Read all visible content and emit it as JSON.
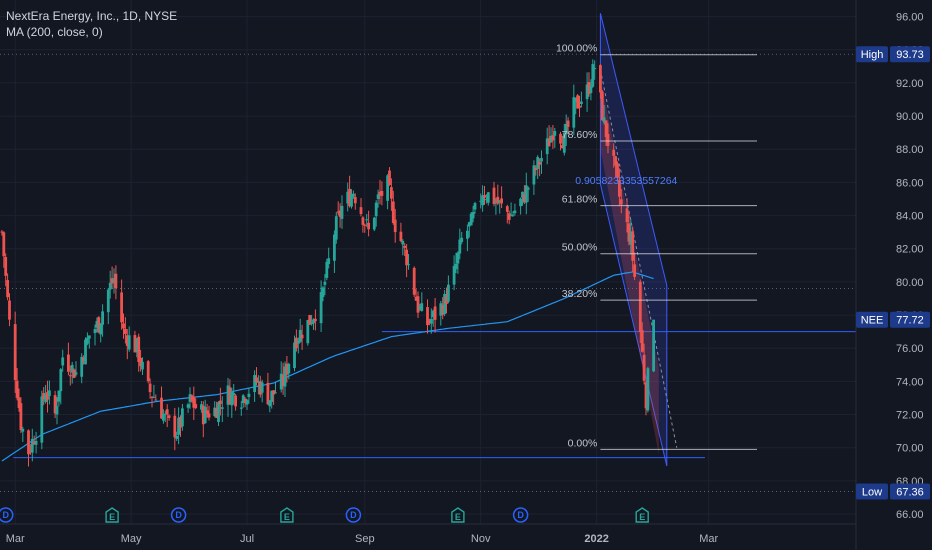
{
  "header": {
    "title": "NextEra Energy, Inc., 1D, NYSE",
    "indicator": "MA (200, close, 0)"
  },
  "colors": {
    "background": "#131722",
    "up": "#26a69a",
    "down": "#ef5350",
    "ma": "#2196f3",
    "axis_text": "#b2b5be",
    "tag": "#1e3a8a",
    "fib_line": "#d1d4dc",
    "fib_text": "#c0c6d0",
    "channel": "#3d5afe"
  },
  "chart_data": {
    "type": "candlestick",
    "symbol": "NEE",
    "interval": "1D",
    "ylim": [
      65.4,
      97.0
    ],
    "y_ticks": [
      "96.00",
      "94.00",
      "92.00",
      "90.00",
      "88.00",
      "86.00",
      "84.00",
      "82.00",
      "80.00",
      "78.00",
      "76.00",
      "74.00",
      "72.00",
      "70.00",
      "68.00",
      "66.00"
    ],
    "x_ticks": [
      "Mar",
      "May",
      "Jul",
      "Sep",
      "Nov",
      "2022",
      "Mar"
    ],
    "x_start_date": "2021-02-21",
    "x_tick_dates": [
      "2021-03-01",
      "2021-05-01",
      "2021-07-01",
      "2021-09-01",
      "2021-11-01",
      "2022-01-01",
      "2022-03-01"
    ],
    "last_date": "2022-01-31",
    "price_tags": [
      {
        "label": "High",
        "value": "93.73",
        "price": 93.73
      },
      {
        "label": "NEE",
        "value": "77.72",
        "price": 77.72
      },
      {
        "label": "Low",
        "value": "67.36",
        "price": 67.36
      }
    ],
    "close_anchors": [
      [
        "2021-02-22",
        83.0
      ],
      [
        "2021-02-26",
        77.5
      ],
      [
        "2021-03-04",
        71.5
      ],
      [
        "2021-03-08",
        69.8
      ],
      [
        "2021-03-12",
        71.0
      ],
      [
        "2021-03-17",
        73.5
      ],
      [
        "2021-03-22",
        72.0
      ],
      [
        "2021-03-26",
        75.5
      ],
      [
        "2021-04-02",
        74.5
      ],
      [
        "2021-04-09",
        76.8
      ],
      [
        "2021-04-14",
        77.5
      ],
      [
        "2021-04-19",
        79.5
      ],
      [
        "2021-04-22",
        80.2
      ],
      [
        "2021-04-27",
        77.0
      ],
      [
        "2021-05-04",
        76.0
      ],
      [
        "2021-05-10",
        73.5
      ],
      [
        "2021-05-14",
        73.0
      ],
      [
        "2021-05-20",
        71.5
      ],
      [
        "2021-05-25",
        71.0
      ],
      [
        "2021-06-01",
        72.8
      ],
      [
        "2021-06-08",
        72.0
      ],
      [
        "2021-06-14",
        72.3
      ],
      [
        "2021-06-21",
        73.3
      ],
      [
        "2021-06-28",
        73.0
      ],
      [
        "2021-07-06",
        74.0
      ],
      [
        "2021-07-13",
        73.0
      ],
      [
        "2021-07-20",
        74.0
      ],
      [
        "2021-07-26",
        76.5
      ],
      [
        "2021-08-02",
        77.5
      ],
      [
        "2021-08-09",
        78.8
      ],
      [
        "2021-08-16",
        83.0
      ],
      [
        "2021-08-20",
        84.5
      ],
      [
        "2021-08-26",
        85.5
      ],
      [
        "2021-08-31",
        84.0
      ],
      [
        "2021-09-03",
        83.0
      ],
      [
        "2021-09-08",
        85.0
      ],
      [
        "2021-09-13",
        85.8
      ],
      [
        "2021-09-17",
        83.5
      ],
      [
        "2021-09-23",
        81.5
      ],
      [
        "2021-09-29",
        78.5
      ],
      [
        "2021-10-04",
        77.5
      ],
      [
        "2021-10-08",
        78.0
      ],
      [
        "2021-10-13",
        78.8
      ],
      [
        "2021-10-18",
        80.5
      ],
      [
        "2021-10-22",
        82.5
      ],
      [
        "2021-10-27",
        83.5
      ],
      [
        "2021-11-02",
        85.5
      ],
      [
        "2021-11-08",
        85.0
      ],
      [
        "2021-11-12",
        84.5
      ],
      [
        "2021-11-17",
        84.0
      ],
      [
        "2021-11-23",
        85.0
      ],
      [
        "2021-11-30",
        86.8
      ],
      [
        "2021-12-06",
        88.2
      ],
      [
        "2021-12-10",
        89.5
      ],
      [
        "2021-12-15",
        88.5
      ],
      [
        "2021-12-20",
        90.5
      ],
      [
        "2021-12-27",
        91.5
      ],
      [
        "2021-12-31",
        93.0
      ],
      [
        "2022-01-05",
        89.5
      ],
      [
        "2022-01-10",
        87.0
      ],
      [
        "2022-01-14",
        84.5
      ],
      [
        "2022-01-19",
        82.5
      ],
      [
        "2022-01-24",
        77.0
      ],
      [
        "2022-01-27",
        73.0
      ],
      [
        "2022-01-31",
        77.72
      ]
    ],
    "ma200_anchors": [
      [
        "2021-02-22",
        69.2
      ],
      [
        "2021-03-15",
        70.8
      ],
      [
        "2021-04-15",
        72.2
      ],
      [
        "2021-05-15",
        72.8
      ],
      [
        "2021-06-15",
        73.2
      ],
      [
        "2021-07-15",
        73.9
      ],
      [
        "2021-08-15",
        75.5
      ],
      [
        "2021-09-15",
        76.7
      ],
      [
        "2021-10-15",
        77.2
      ],
      [
        "2021-11-15",
        77.6
      ],
      [
        "2021-12-15",
        79.0
      ],
      [
        "2022-01-10",
        80.4
      ],
      [
        "2022-01-20",
        80.6
      ],
      [
        "2022-01-31",
        80.2
      ]
    ],
    "horizontal_lines": [
      {
        "price": 77.0,
        "start": "2021-09-10",
        "end": "chart-end"
      },
      {
        "price": 69.4,
        "start": "2021-02-28",
        "end": "2022-02-27"
      }
    ],
    "dotted_levels": [
      93.73,
      79.6,
      67.36
    ],
    "fibonacci": {
      "start_date": "2022-01-03",
      "end_date": "2022-02-08",
      "levels": [
        {
          "ratio": 1.0,
          "label": "100.00%",
          "price": 93.7
        },
        {
          "ratio": 0.786,
          "label": "78.60%",
          "price": 88.5
        },
        {
          "ratio": 0.618,
          "label": "61.80%",
          "price": 84.6
        },
        {
          "ratio": 0.5,
          "label": "50.00%",
          "price": 81.7
        },
        {
          "ratio": 0.382,
          "label": "38.20%",
          "price": 78.9
        },
        {
          "ratio": 0.0,
          "label": "0.00%",
          "price": 69.9
        }
      ],
      "annotation": "0.9058233353557264"
    },
    "events": [
      {
        "type": "D",
        "date": "2021-02-24"
      },
      {
        "type": "D",
        "date": "2021-05-26"
      },
      {
        "type": "E",
        "date": "2021-04-21"
      },
      {
        "type": "E",
        "date": "2021-07-22"
      },
      {
        "type": "D",
        "date": "2021-08-26"
      },
      {
        "type": "E",
        "date": "2021-10-20"
      },
      {
        "type": "D",
        "date": "2021-11-22"
      },
      {
        "type": "E",
        "date": "2022-01-25"
      }
    ]
  }
}
